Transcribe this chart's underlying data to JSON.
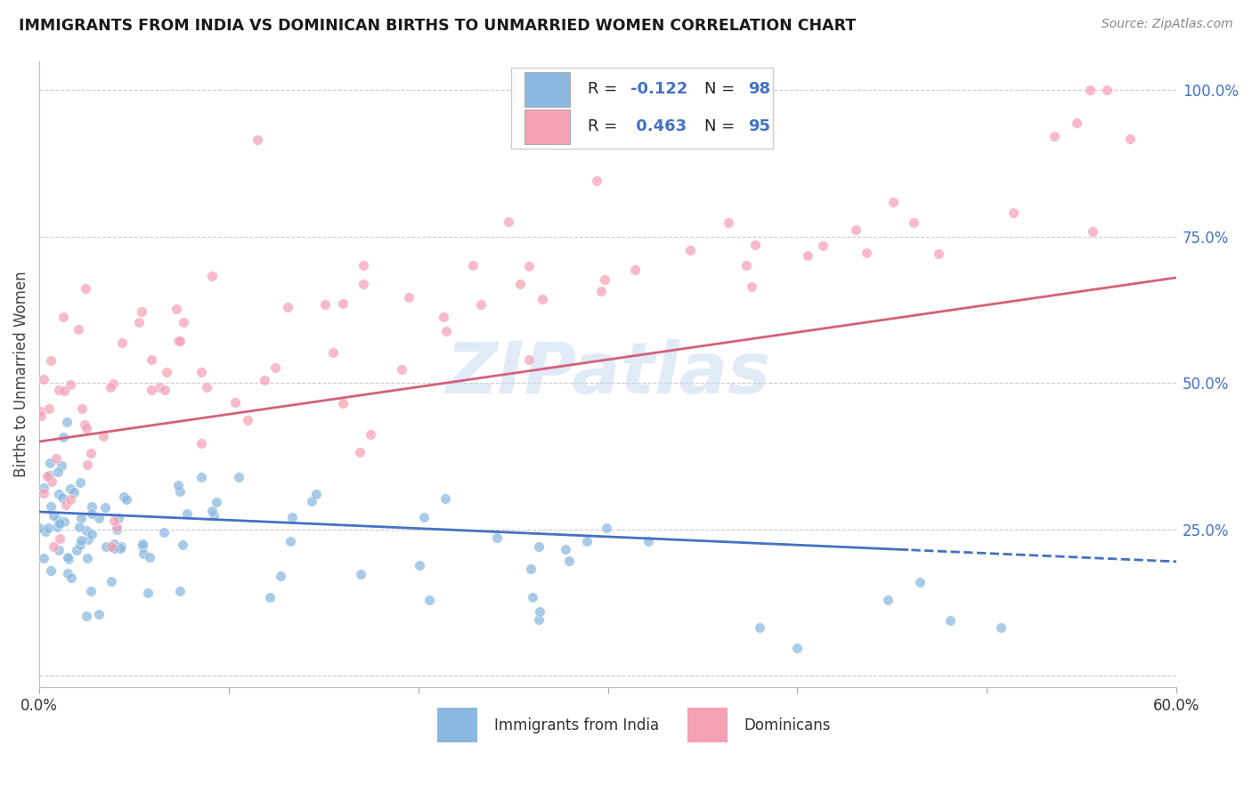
{
  "title": "IMMIGRANTS FROM INDIA VS DOMINICAN BIRTHS TO UNMARRIED WOMEN CORRELATION CHART",
  "source": "Source: ZipAtlas.com",
  "ylabel": "Births to Unmarried Women",
  "series1_label": "Immigrants from India",
  "series2_label": "Dominicans",
  "series1_color": "#8ab8e0",
  "series2_color": "#f4a0b5",
  "series1_R": -0.122,
  "series1_N": 98,
  "series2_R": 0.463,
  "series2_N": 95,
  "xlim": [
    0.0,
    0.6
  ],
  "ylim": [
    -0.02,
    1.05
  ],
  "watermark": "ZIPatlas",
  "background_color": "#ffffff",
  "grid_color": "#cccccc",
  "title_color": "#1a1a1a",
  "source_color": "#888888",
  "right_label_color": "#4472c4",
  "trend1_color": "#4472c4",
  "trend2_color": "#d4607a",
  "right_yticks": [
    0.0,
    0.25,
    0.5,
    0.75,
    1.0
  ],
  "right_yticklabels": [
    "",
    "25.0%",
    "50.0%",
    "75.0%",
    "100.0%"
  ],
  "legend_value_color": "#4472c4",
  "legend_label_color": "#222222",
  "trend1_intercept": 0.28,
  "trend1_slope_rise": -0.085,
  "trend2_intercept": 0.4,
  "trend2_slope_rise": 0.28,
  "trend_xmax": 0.6,
  "trend1_solid_cutoff": 0.46
}
